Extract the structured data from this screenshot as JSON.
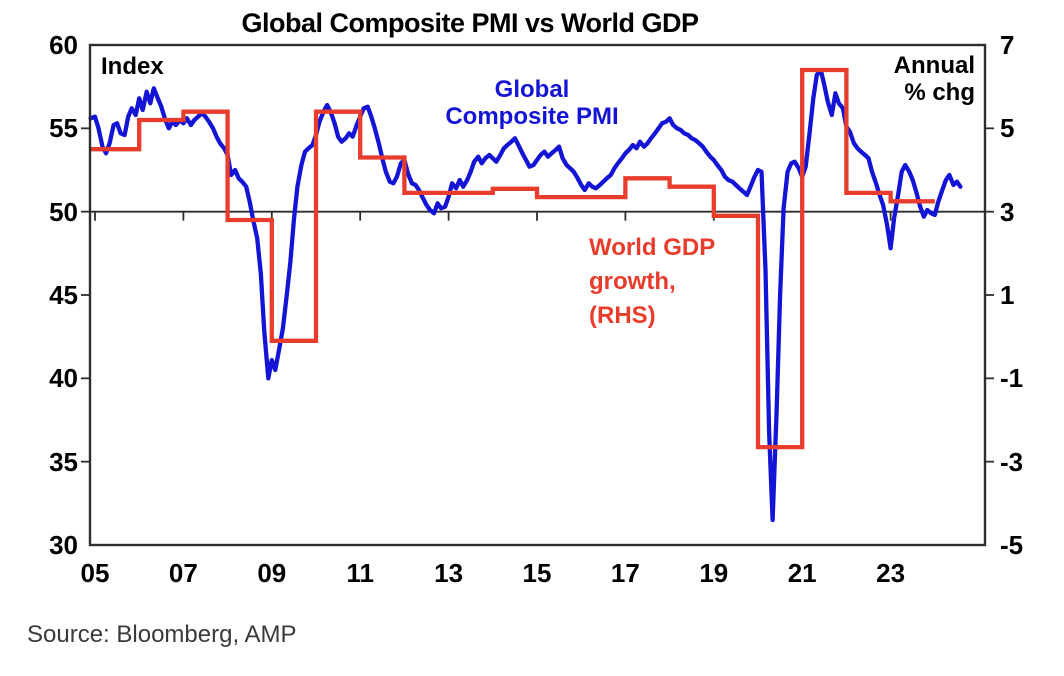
{
  "title": "Global Composite PMI vs World GDP",
  "source": "Source: Bloomberg, AMP",
  "labels": {
    "index": "Index",
    "annual_line1": "Annual",
    "annual_line2": "% chg",
    "pmi_line1": "Global",
    "pmi_line2": "Composite PMI",
    "gdp_line1": "World GDP",
    "gdp_line2": "growth,",
    "gdp_line3": "(RHS)"
  },
  "colors": {
    "pmi": "#1414d7",
    "gdp": "#e83c2d",
    "axis": "#2e2e2e",
    "text": "#000000",
    "source_text": "#3a3a3a"
  },
  "chart_data": {
    "type": "line",
    "title": "Global Composite PMI vs World GDP",
    "left_axis": {
      "label": "Index",
      "min": 30,
      "max": 60,
      "ticks": [
        60,
        55,
        50,
        45,
        40,
        35,
        30
      ]
    },
    "right_axis": {
      "label": "Annual % chg",
      "min": -5,
      "max": 7,
      "ticks": [
        7,
        5,
        3,
        1,
        -1,
        -3,
        -5
      ]
    },
    "x_axis": {
      "base_year": 2005,
      "tick_years": [
        2005,
        2007,
        2009,
        2011,
        2013,
        2015,
        2017,
        2019,
        2021,
        2023
      ],
      "tick_labels": [
        "05",
        "07",
        "09",
        "11",
        "13",
        "15",
        "17",
        "19",
        "21",
        "23"
      ],
      "plot_start_year": 2004.89,
      "plot_end_year": 2025.13
    },
    "baseline_left_value": 50,
    "grid": false,
    "series": [
      {
        "name": "Global Composite PMI",
        "axis": "left",
        "color_key": "pmi",
        "style": "line",
        "points": [
          [
            2004.9,
            55.6
          ],
          [
            2005.0,
            55.7
          ],
          [
            2005.08,
            55.0
          ],
          [
            2005.17,
            53.9
          ],
          [
            2005.25,
            53.5
          ],
          [
            2005.33,
            54.1
          ],
          [
            2005.42,
            55.2
          ],
          [
            2005.5,
            55.3
          ],
          [
            2005.58,
            54.7
          ],
          [
            2005.67,
            54.6
          ],
          [
            2005.75,
            55.7
          ],
          [
            2005.83,
            56.2
          ],
          [
            2005.92,
            55.8
          ],
          [
            2006.0,
            56.8
          ],
          [
            2006.08,
            56.1
          ],
          [
            2006.17,
            57.2
          ],
          [
            2006.25,
            56.5
          ],
          [
            2006.33,
            57.4
          ],
          [
            2006.42,
            56.8
          ],
          [
            2006.5,
            56.3
          ],
          [
            2006.58,
            55.6
          ],
          [
            2006.67,
            55.0
          ],
          [
            2006.75,
            55.4
          ],
          [
            2006.83,
            55.2
          ],
          [
            2006.92,
            55.5
          ],
          [
            2007.0,
            55.3
          ],
          [
            2007.08,
            55.6
          ],
          [
            2007.17,
            55.2
          ],
          [
            2007.25,
            55.5
          ],
          [
            2007.33,
            55.7
          ],
          [
            2007.42,
            55.9
          ],
          [
            2007.5,
            55.7
          ],
          [
            2007.58,
            55.4
          ],
          [
            2007.67,
            55.0
          ],
          [
            2007.75,
            54.5
          ],
          [
            2007.83,
            54.1
          ],
          [
            2007.92,
            53.8
          ],
          [
            2008.0,
            53.4
          ],
          [
            2008.08,
            52.2
          ],
          [
            2008.17,
            52.5
          ],
          [
            2008.25,
            52.0
          ],
          [
            2008.33,
            51.8
          ],
          [
            2008.42,
            51.5
          ],
          [
            2008.5,
            50.6
          ],
          [
            2008.58,
            49.5
          ],
          [
            2008.67,
            48.4
          ],
          [
            2008.75,
            46.3
          ],
          [
            2008.83,
            42.8
          ],
          [
            2008.92,
            40.0
          ],
          [
            2009.0,
            41.1
          ],
          [
            2009.08,
            40.5
          ],
          [
            2009.17,
            41.8
          ],
          [
            2009.25,
            43.0
          ],
          [
            2009.33,
            44.8
          ],
          [
            2009.42,
            47.0
          ],
          [
            2009.5,
            49.5
          ],
          [
            2009.58,
            51.5
          ],
          [
            2009.67,
            52.8
          ],
          [
            2009.75,
            53.6
          ],
          [
            2009.83,
            53.8
          ],
          [
            2009.92,
            54.0
          ],
          [
            2010.0,
            54.6
          ],
          [
            2010.08,
            55.4
          ],
          [
            2010.17,
            56.0
          ],
          [
            2010.25,
            56.4
          ],
          [
            2010.33,
            56.0
          ],
          [
            2010.42,
            55.3
          ],
          [
            2010.5,
            54.5
          ],
          [
            2010.58,
            54.2
          ],
          [
            2010.67,
            54.4
          ],
          [
            2010.75,
            54.7
          ],
          [
            2010.83,
            54.5
          ],
          [
            2010.92,
            55.2
          ],
          [
            2011.0,
            55.7
          ],
          [
            2011.08,
            56.2
          ],
          [
            2011.17,
            56.3
          ],
          [
            2011.25,
            55.7
          ],
          [
            2011.33,
            55.0
          ],
          [
            2011.42,
            54.1
          ],
          [
            2011.5,
            53.2
          ],
          [
            2011.58,
            52.4
          ],
          [
            2011.67,
            51.8
          ],
          [
            2011.75,
            51.7
          ],
          [
            2011.83,
            52.1
          ],
          [
            2011.92,
            52.9
          ],
          [
            2012.0,
            53.1
          ],
          [
            2012.08,
            52.3
          ],
          [
            2012.17,
            51.7
          ],
          [
            2012.25,
            51.6
          ],
          [
            2012.33,
            51.3
          ],
          [
            2012.42,
            50.8
          ],
          [
            2012.5,
            50.4
          ],
          [
            2012.58,
            50.1
          ],
          [
            2012.67,
            49.9
          ],
          [
            2012.75,
            50.5
          ],
          [
            2012.83,
            50.2
          ],
          [
            2012.92,
            50.3
          ],
          [
            2013.0,
            50.9
          ],
          [
            2013.08,
            51.7
          ],
          [
            2013.17,
            51.4
          ],
          [
            2013.25,
            51.9
          ],
          [
            2013.33,
            51.5
          ],
          [
            2013.42,
            51.9
          ],
          [
            2013.5,
            52.4
          ],
          [
            2013.58,
            53.0
          ],
          [
            2013.67,
            53.3
          ],
          [
            2013.75,
            52.9
          ],
          [
            2013.83,
            53.2
          ],
          [
            2013.92,
            53.4
          ],
          [
            2014.0,
            53.2
          ],
          [
            2014.08,
            53.0
          ],
          [
            2014.17,
            53.4
          ],
          [
            2014.25,
            53.8
          ],
          [
            2014.33,
            54.0
          ],
          [
            2014.42,
            54.2
          ],
          [
            2014.5,
            54.4
          ],
          [
            2014.58,
            54.0
          ],
          [
            2014.67,
            53.5
          ],
          [
            2014.75,
            53.1
          ],
          [
            2014.83,
            52.7
          ],
          [
            2014.92,
            52.8
          ],
          [
            2015.0,
            53.1
          ],
          [
            2015.08,
            53.4
          ],
          [
            2015.17,
            53.6
          ],
          [
            2015.25,
            53.3
          ],
          [
            2015.33,
            53.5
          ],
          [
            2015.42,
            53.7
          ],
          [
            2015.5,
            53.9
          ],
          [
            2015.58,
            53.2
          ],
          [
            2015.67,
            52.8
          ],
          [
            2015.75,
            52.6
          ],
          [
            2015.83,
            52.4
          ],
          [
            2015.92,
            52.0
          ],
          [
            2016.0,
            51.6
          ],
          [
            2016.08,
            51.3
          ],
          [
            2016.17,
            51.7
          ],
          [
            2016.25,
            51.5
          ],
          [
            2016.33,
            51.4
          ],
          [
            2016.42,
            51.6
          ],
          [
            2016.5,
            51.8
          ],
          [
            2016.58,
            52.0
          ],
          [
            2016.67,
            52.2
          ],
          [
            2016.75,
            52.6
          ],
          [
            2016.83,
            52.9
          ],
          [
            2016.92,
            53.2
          ],
          [
            2017.0,
            53.5
          ],
          [
            2017.08,
            53.7
          ],
          [
            2017.17,
            54.0
          ],
          [
            2017.25,
            53.8
          ],
          [
            2017.33,
            54.2
          ],
          [
            2017.42,
            53.9
          ],
          [
            2017.5,
            54.1
          ],
          [
            2017.58,
            54.4
          ],
          [
            2017.67,
            54.7
          ],
          [
            2017.75,
            55.0
          ],
          [
            2017.83,
            55.3
          ],
          [
            2017.92,
            55.4
          ],
          [
            2018.0,
            55.6
          ],
          [
            2018.08,
            55.2
          ],
          [
            2018.17,
            55.0
          ],
          [
            2018.25,
            54.9
          ],
          [
            2018.33,
            54.7
          ],
          [
            2018.42,
            54.6
          ],
          [
            2018.5,
            54.4
          ],
          [
            2018.58,
            54.3
          ],
          [
            2018.67,
            54.1
          ],
          [
            2018.75,
            53.9
          ],
          [
            2018.83,
            53.6
          ],
          [
            2018.92,
            53.3
          ],
          [
            2019.0,
            53.1
          ],
          [
            2019.08,
            52.8
          ],
          [
            2019.17,
            52.5
          ],
          [
            2019.25,
            52.1
          ],
          [
            2019.33,
            51.9
          ],
          [
            2019.42,
            51.8
          ],
          [
            2019.5,
            51.6
          ],
          [
            2019.58,
            51.4
          ],
          [
            2019.67,
            51.2
          ],
          [
            2019.75,
            51.0
          ],
          [
            2019.83,
            51.5
          ],
          [
            2019.92,
            52.1
          ],
          [
            2020.0,
            52.5
          ],
          [
            2020.08,
            52.4
          ],
          [
            2020.17,
            46.5
          ],
          [
            2020.25,
            36.8
          ],
          [
            2020.33,
            31.5
          ],
          [
            2020.42,
            38.0
          ],
          [
            2020.5,
            45.0
          ],
          [
            2020.58,
            50.2
          ],
          [
            2020.67,
            52.4
          ],
          [
            2020.75,
            52.9
          ],
          [
            2020.83,
            53.0
          ],
          [
            2020.92,
            52.6
          ],
          [
            2021.0,
            52.1
          ],
          [
            2021.08,
            52.7
          ],
          [
            2021.17,
            54.8
          ],
          [
            2021.25,
            56.8
          ],
          [
            2021.33,
            58.2
          ],
          [
            2021.42,
            58.5
          ],
          [
            2021.5,
            57.6
          ],
          [
            2021.58,
            56.6
          ],
          [
            2021.67,
            55.8
          ],
          [
            2021.75,
            57.1
          ],
          [
            2021.83,
            56.5
          ],
          [
            2021.92,
            56.2
          ],
          [
            2022.0,
            55.1
          ],
          [
            2022.08,
            54.8
          ],
          [
            2022.17,
            54.1
          ],
          [
            2022.25,
            53.8
          ],
          [
            2022.33,
            53.6
          ],
          [
            2022.42,
            53.4
          ],
          [
            2022.5,
            53.2
          ],
          [
            2022.58,
            52.4
          ],
          [
            2022.67,
            51.7
          ],
          [
            2022.75,
            51.0
          ],
          [
            2022.83,
            50.4
          ],
          [
            2022.92,
            49.2
          ],
          [
            2023.0,
            47.8
          ],
          [
            2023.08,
            49.6
          ],
          [
            2023.17,
            51.0
          ],
          [
            2023.25,
            52.4
          ],
          [
            2023.33,
            52.8
          ],
          [
            2023.42,
            52.4
          ],
          [
            2023.5,
            51.9
          ],
          [
            2023.58,
            51.2
          ],
          [
            2023.67,
            50.3
          ],
          [
            2023.75,
            49.7
          ],
          [
            2023.83,
            50.1
          ],
          [
            2023.92,
            49.9
          ],
          [
            2024.0,
            49.8
          ],
          [
            2024.08,
            50.6
          ],
          [
            2024.17,
            51.3
          ],
          [
            2024.25,
            51.9
          ],
          [
            2024.33,
            52.2
          ],
          [
            2024.42,
            51.6
          ],
          [
            2024.5,
            51.8
          ],
          [
            2024.58,
            51.5
          ]
        ]
      },
      {
        "name": "World GDP growth (RHS)",
        "axis": "right",
        "color_key": "gdp",
        "style": "step",
        "start_year": 2004.89,
        "end_year": 2024.0,
        "annual": [
          [
            2005,
            4.5
          ],
          [
            2006,
            5.2
          ],
          [
            2007,
            5.4
          ],
          [
            2008,
            2.8
          ],
          [
            2009,
            -0.1
          ],
          [
            2010,
            5.4
          ],
          [
            2011,
            4.3
          ],
          [
            2012,
            3.45
          ],
          [
            2013,
            3.45
          ],
          [
            2014,
            3.55
          ],
          [
            2015,
            3.35
          ],
          [
            2016,
            3.35
          ],
          [
            2017,
            3.8
          ],
          [
            2018,
            3.6
          ],
          [
            2019,
            2.9
          ],
          [
            2020,
            -2.65
          ],
          [
            2021,
            6.4
          ],
          [
            2022,
            3.45
          ],
          [
            2023,
            3.25
          ]
        ]
      }
    ]
  }
}
